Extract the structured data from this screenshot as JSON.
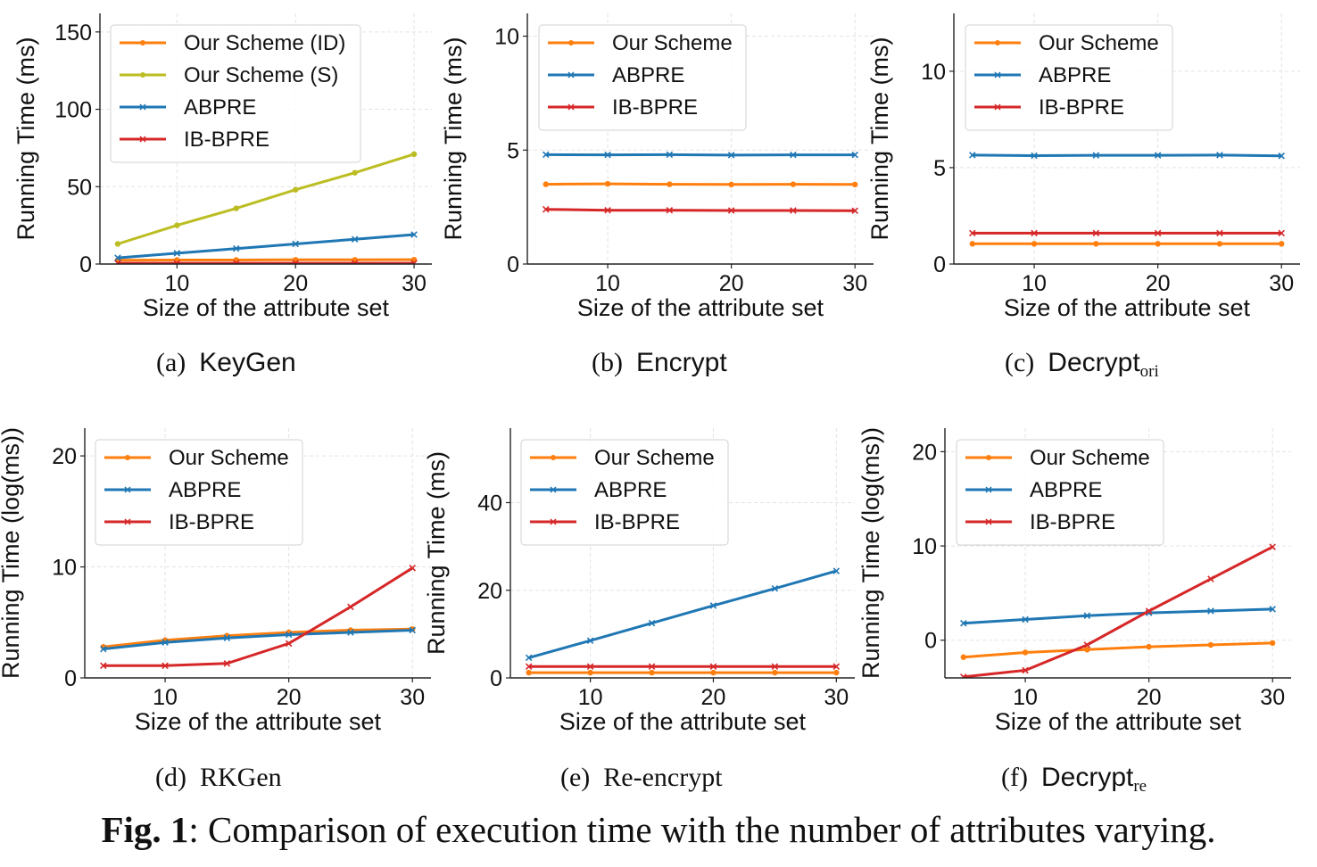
{
  "figure": {
    "label": "Fig. 1",
    "caption": ": Comparison of execution time with the number of attributes varying."
  },
  "colors": {
    "orange": "#ff7f0e",
    "olive": "#bcbd22",
    "blue": "#1f77b4",
    "red": "#d62728"
  },
  "chart_data": [
    {
      "id": "a",
      "type": "line",
      "caption_label": "(a)",
      "caption_name": "KeyGen",
      "caption_sub": "",
      "xlabel": "Size of the attribute set",
      "ylabel": "Running Time (ms)",
      "xlim": [
        3.5,
        31.5
      ],
      "ylim": [
        0,
        162
      ],
      "xticks": [
        10,
        20,
        30
      ],
      "yticks": [
        0,
        50,
        100,
        150
      ],
      "grid": true,
      "legend": "top-left",
      "x": [
        5,
        10,
        15,
        20,
        25,
        30
      ],
      "series": [
        {
          "name": "Our Scheme (ID)",
          "color": "#ff7f0e",
          "marker": "dot",
          "values": [
            2.5,
            2.6,
            2.6,
            2.7,
            2.7,
            2.8
          ]
        },
        {
          "name": "Our Scheme (S)",
          "color": "#bcbd22",
          "marker": "dot",
          "values": [
            13,
            25,
            36,
            48,
            59,
            71
          ]
        },
        {
          "name": "ABPRE",
          "color": "#1f77b4",
          "marker": "x",
          "values": [
            4,
            7,
            10,
            13,
            16,
            19
          ]
        },
        {
          "name": "IB-BPRE",
          "color": "#d62728",
          "marker": "x",
          "values": [
            0.5,
            0.5,
            0.5,
            0.5,
            0.5,
            0.5
          ]
        }
      ]
    },
    {
      "id": "b",
      "type": "line",
      "caption_label": "(b)",
      "caption_name": "Encrypt",
      "caption_sub": "",
      "xlabel": "Size of the attribute set",
      "ylabel": "Running Time (ms)",
      "xlim": [
        3.5,
        31.5
      ],
      "ylim": [
        0,
        11
      ],
      "xticks": [
        10,
        20,
        30
      ],
      "yticks": [
        0,
        5,
        10
      ],
      "grid": true,
      "legend": "top-left",
      "x": [
        5,
        10,
        15,
        20,
        25,
        30
      ],
      "series": [
        {
          "name": "Our Scheme",
          "color": "#ff7f0e",
          "marker": "dot",
          "values": [
            3.5,
            3.52,
            3.5,
            3.49,
            3.5,
            3.49
          ]
        },
        {
          "name": "ABPRE",
          "color": "#1f77b4",
          "marker": "x",
          "values": [
            4.8,
            4.79,
            4.8,
            4.78,
            4.79,
            4.79
          ]
        },
        {
          "name": "IB-BPRE",
          "color": "#d62728",
          "marker": "x",
          "values": [
            2.4,
            2.36,
            2.36,
            2.35,
            2.35,
            2.34
          ]
        }
      ]
    },
    {
      "id": "c",
      "type": "line",
      "caption_label": "(c)",
      "caption_name": "Decrypt",
      "caption_sub": "ori",
      "xlabel": "Size of the attribute set",
      "ylabel": "Running Time (ms)",
      "xlim": [
        3.5,
        31.5
      ],
      "ylim": [
        0,
        13
      ],
      "xticks": [
        10,
        20,
        30
      ],
      "yticks": [
        0,
        5,
        10
      ],
      "grid": true,
      "legend": "top-left",
      "x": [
        5,
        10,
        15,
        20,
        25,
        30
      ],
      "series": [
        {
          "name": "Our Scheme",
          "color": "#ff7f0e",
          "marker": "dot",
          "values": [
            1.05,
            1.05,
            1.05,
            1.05,
            1.05,
            1.05
          ]
        },
        {
          "name": "ABPRE",
          "color": "#1f77b4",
          "marker": "x",
          "values": [
            5.65,
            5.62,
            5.64,
            5.64,
            5.65,
            5.61
          ]
        },
        {
          "name": "IB-BPRE",
          "color": "#d62728",
          "marker": "x",
          "values": [
            1.6,
            1.6,
            1.6,
            1.6,
            1.6,
            1.6
          ]
        }
      ]
    },
    {
      "id": "d",
      "type": "line",
      "caption_label": "(d)",
      "caption_name": "RKGen",
      "caption_sub": "",
      "xlabel": "Size of the attribute set",
      "ylabel": "Running Time (log(ms))",
      "xlim": [
        3.5,
        31.5
      ],
      "ylim": [
        0,
        22.5
      ],
      "xticks": [
        10,
        20,
        30
      ],
      "yticks": [
        0,
        10,
        20
      ],
      "grid": true,
      "legend": "top-left",
      "x": [
        5,
        10,
        15,
        20,
        25,
        30
      ],
      "series": [
        {
          "name": "Our Scheme",
          "color": "#ff7f0e",
          "marker": "dot",
          "values": [
            2.8,
            3.4,
            3.8,
            4.1,
            4.3,
            4.4
          ]
        },
        {
          "name": "ABPRE",
          "color": "#1f77b4",
          "marker": "x",
          "values": [
            2.6,
            3.2,
            3.6,
            3.9,
            4.1,
            4.3
          ]
        },
        {
          "name": "IB-BPRE",
          "color": "#d62728",
          "marker": "x",
          "values": [
            1.1,
            1.1,
            1.3,
            3.1,
            6.4,
            9.9
          ]
        }
      ]
    },
    {
      "id": "e",
      "type": "line",
      "caption_label": "(e)",
      "caption_name": "Re-encrypt",
      "caption_sub": "",
      "xlabel": "Size of the attribute set",
      "ylabel": "Running Time (ms)",
      "xlim": [
        3.5,
        31.5
      ],
      "ylim": [
        0,
        57
      ],
      "xticks": [
        10,
        20,
        30
      ],
      "yticks": [
        0,
        20,
        40
      ],
      "grid": true,
      "legend": "top-left",
      "x": [
        5,
        10,
        15,
        20,
        25,
        30
      ],
      "series": [
        {
          "name": "Our Scheme",
          "color": "#ff7f0e",
          "marker": "dot",
          "values": [
            1.2,
            1.2,
            1.2,
            1.2,
            1.2,
            1.2
          ]
        },
        {
          "name": "ABPRE",
          "color": "#1f77b4",
          "marker": "x",
          "values": [
            4.6,
            8.5,
            12.5,
            16.5,
            20.4,
            24.4
          ]
        },
        {
          "name": "IB-BPRE",
          "color": "#d62728",
          "marker": "x",
          "values": [
            2.6,
            2.6,
            2.6,
            2.6,
            2.6,
            2.6
          ]
        }
      ]
    },
    {
      "id": "f",
      "type": "line",
      "caption_label": "(f)",
      "caption_name": "Decrypt",
      "caption_sub": "re",
      "xlabel": "Size of the attribute set",
      "ylabel": "Running Time (log(ms))",
      "xlim": [
        3.5,
        31.5
      ],
      "ylim": [
        -4,
        22.5
      ],
      "xticks": [
        10,
        20,
        30
      ],
      "yticks": [
        0,
        10,
        20
      ],
      "grid": true,
      "legend": "top-left",
      "x": [
        5,
        10,
        15,
        20,
        25,
        30
      ],
      "series": [
        {
          "name": "Our Scheme",
          "color": "#ff7f0e",
          "marker": "dot",
          "values": [
            -1.8,
            -1.3,
            -1.0,
            -0.7,
            -0.5,
            -0.3
          ]
        },
        {
          "name": "ABPRE",
          "color": "#1f77b4",
          "marker": "x",
          "values": [
            1.8,
            2.2,
            2.6,
            2.9,
            3.1,
            3.3
          ]
        },
        {
          "name": "IB-BPRE",
          "color": "#d62728",
          "marker": "x",
          "values": [
            -3.9,
            -3.2,
            -0.5,
            3.1,
            6.5,
            9.9
          ]
        }
      ]
    }
  ]
}
